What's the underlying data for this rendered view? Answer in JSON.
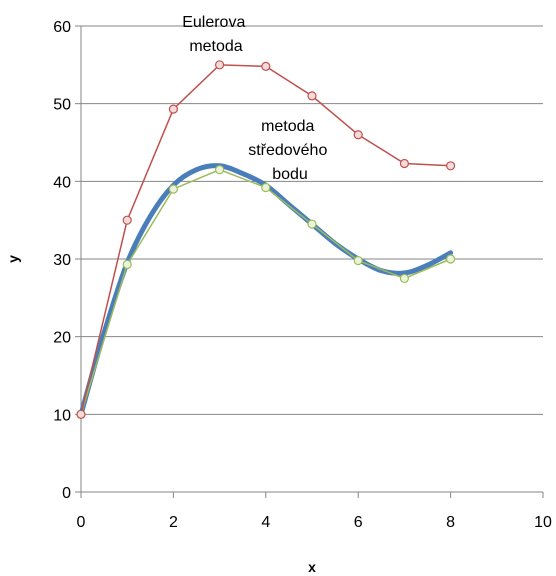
{
  "chart_data": {
    "type": "scatter",
    "xlabel": "x",
    "ylabel": "y",
    "xlim": [
      0,
      10
    ],
    "ylim": [
      0,
      60
    ],
    "x_ticks": [
      0,
      2,
      4,
      6,
      8,
      10
    ],
    "y_ticks": [
      0,
      10,
      20,
      30,
      40,
      50,
      60
    ],
    "grid": "y-major",
    "series": [
      {
        "name": "",
        "style": "smooth-line",
        "color": "#4a7ebb",
        "x": [
          0,
          0.5,
          1,
          1.5,
          2,
          2.5,
          3,
          3.5,
          4,
          4.5,
          5,
          5.5,
          6,
          6.5,
          7,
          7.5,
          8
        ],
        "y": [
          10,
          20.5,
          29.5,
          35.5,
          39.5,
          41.5,
          42.0,
          41.0,
          39.5,
          37.0,
          34.5,
          32.0,
          30.0,
          28.5,
          28.2,
          29.2,
          30.8
        ]
      },
      {
        "name": "",
        "style": "line-markers",
        "color": "#9bbb59",
        "marker_fill": "#ecf3dc",
        "x": [
          0,
          1,
          2,
          3,
          4,
          5,
          6,
          7,
          8
        ],
        "y": [
          10,
          29.3,
          39.0,
          41.5,
          39.2,
          34.5,
          29.8,
          27.5,
          30.0
        ]
      },
      {
        "name": "",
        "style": "line-markers",
        "color": "#c0504d",
        "marker_fill": "#f2dcdb",
        "x": [
          0,
          1,
          2,
          3,
          4,
          5,
          6,
          7,
          8
        ],
        "y": [
          10,
          35.0,
          49.3,
          55.0,
          54.8,
          51.0,
          46.0,
          42.3,
          42.0
        ]
      }
    ],
    "annotations": [
      {
        "lines": [
          "Eulerova",
          "metoda"
        ]
      },
      {
        "lines": [
          "metoda",
          "středového",
          "bodu"
        ]
      }
    ]
  }
}
